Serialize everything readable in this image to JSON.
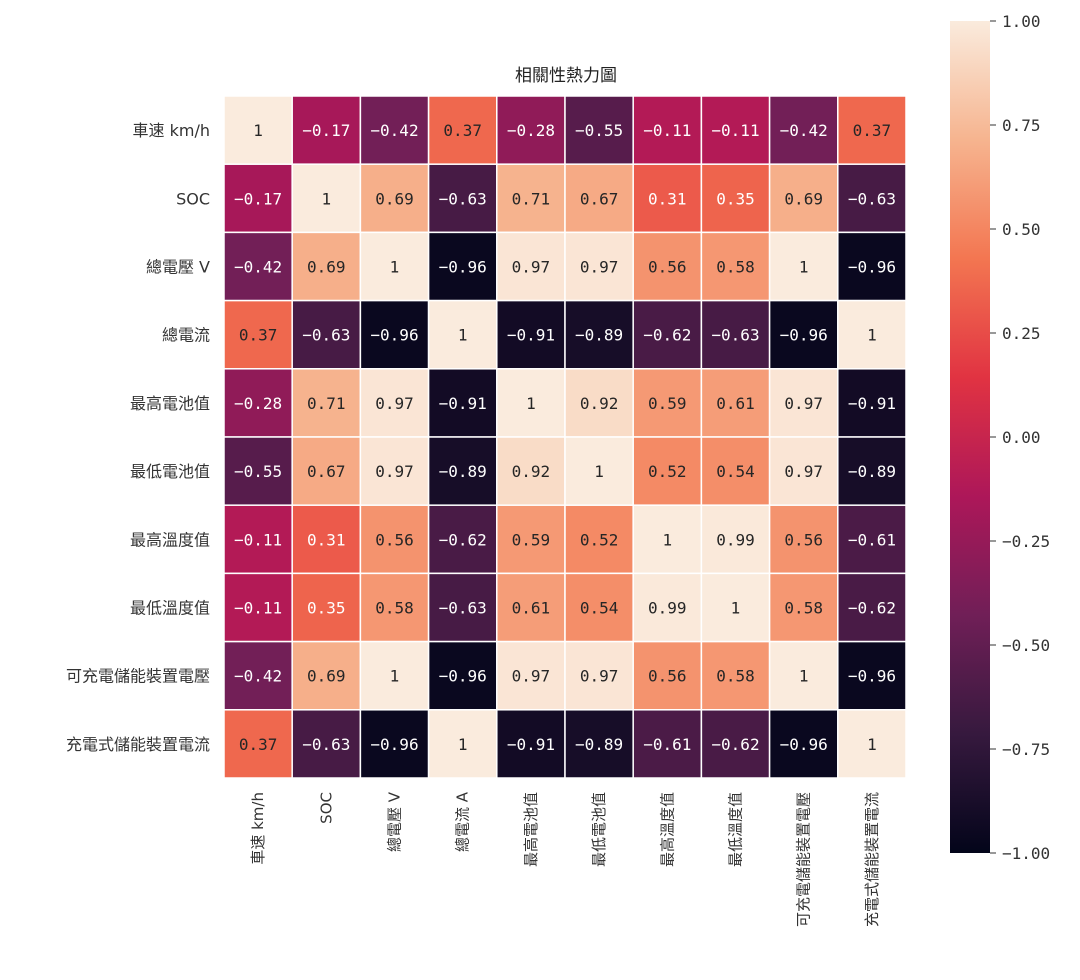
{
  "chart_data": {
    "type": "heatmap",
    "title": "相關性熱力圖",
    "row_labels": [
      "車速 km/h",
      "SOC",
      "總電壓 V",
      "總電流",
      "最高電池值",
      "最低電池值",
      "最高溫度值",
      "最低溫度值",
      "可充電儲能裝置電壓",
      "充電式儲能裝置電流"
    ],
    "col_labels": [
      "車速 km/h",
      "SOC",
      "總電壓 V",
      "總電流 A",
      "最高電池值",
      "最低電池值",
      "最高溫度值",
      "最低溫度值",
      "可充電儲能裝置電壓",
      "充電式儲能裝置電流"
    ],
    "values": [
      [
        1,
        -0.17,
        -0.42,
        0.37,
        -0.28,
        -0.55,
        -0.11,
        -0.11,
        -0.42,
        0.37
      ],
      [
        -0.17,
        1,
        0.69,
        -0.63,
        0.71,
        0.67,
        0.31,
        0.35,
        0.69,
        -0.63
      ],
      [
        -0.42,
        0.69,
        1,
        -0.96,
        0.97,
        0.97,
        0.56,
        0.58,
        1,
        -0.96
      ],
      [
        0.37,
        -0.63,
        -0.96,
        1,
        -0.91,
        -0.89,
        -0.62,
        -0.63,
        -0.96,
        1
      ],
      [
        -0.28,
        0.71,
        0.97,
        -0.91,
        1,
        0.92,
        0.59,
        0.61,
        0.97,
        -0.91
      ],
      [
        -0.55,
        0.67,
        0.97,
        -0.89,
        0.92,
        1,
        0.52,
        0.54,
        0.97,
        -0.89
      ],
      [
        -0.11,
        0.31,
        0.56,
        -0.62,
        0.59,
        0.52,
        1,
        0.99,
        0.56,
        -0.61
      ],
      [
        -0.11,
        0.35,
        0.58,
        -0.63,
        0.61,
        0.54,
        0.99,
        1,
        0.58,
        -0.62
      ],
      [
        -0.42,
        0.69,
        1,
        -0.96,
        0.97,
        0.97,
        0.56,
        0.58,
        1,
        -0.96
      ],
      [
        0.37,
        -0.63,
        -0.96,
        1,
        -0.91,
        -0.89,
        -0.61,
        -0.62,
        -0.96,
        1
      ]
    ],
    "colorbar": {
      "range": [
        -1.0,
        1.0
      ],
      "ticks": [
        1.0,
        0.75,
        0.5,
        0.25,
        0.0,
        -0.25,
        -0.5,
        -0.75,
        -1.0
      ],
      "tick_labels": [
        "1.00",
        "0.75",
        "0.50",
        "0.25",
        "0.00",
        "−0.25",
        "−0.50",
        "−0.75",
        "−1.00"
      ],
      "placement": "right"
    },
    "colormap_stops": [
      "#03051a",
      "#36193e",
      "#701f57",
      "#ad1759",
      "#e13342",
      "#f37651",
      "#f6b48f",
      "#faebdd"
    ]
  }
}
